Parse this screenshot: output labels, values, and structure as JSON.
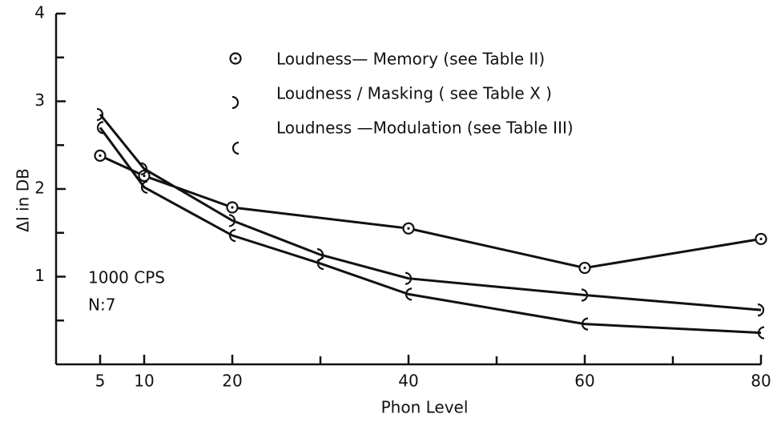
{
  "chart_data": {
    "type": "line",
    "ylabel": "ΔI in DB",
    "xlabel": "Phon Level",
    "annotations": [
      "1000 CPS",
      "N:7"
    ],
    "xlim": [
      0,
      80
    ],
    "ylim": [
      0,
      4
    ],
    "xticks": [
      5,
      10,
      20,
      40,
      60,
      80
    ],
    "xminor": [
      30,
      50,
      70
    ],
    "yticks": [
      1,
      2,
      3,
      4
    ],
    "yminor": [
      0.5,
      1.5,
      2.5,
      3.5
    ],
    "color": "#111111",
    "series": [
      {
        "name": "Loudness— Memory (see Table II)",
        "marker": "circle-dot",
        "x": [
          5,
          10,
          20,
          40,
          60,
          80
        ],
        "values": [
          2.38,
          2.15,
          1.79,
          1.55,
          1.1,
          1.43
        ]
      },
      {
        "name": "Loudness / Masking ( see Table X )",
        "marker": "right-arc",
        "x": [
          5,
          10,
          20,
          30,
          40,
          60,
          80
        ],
        "values": [
          2.85,
          2.23,
          1.64,
          1.25,
          0.98,
          0.79,
          0.62
        ]
      },
      {
        "name": "Loudness —Modulation (see Table III)",
        "marker": "left-arc",
        "x": [
          5,
          10,
          20,
          30,
          40,
          60,
          80
        ],
        "values": [
          2.7,
          2.02,
          1.47,
          1.15,
          0.8,
          0.46,
          0.36
        ]
      }
    ]
  }
}
